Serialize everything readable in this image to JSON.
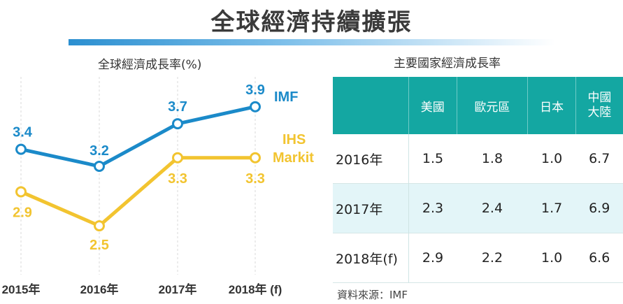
{
  "title": "全球經濟持續擴張",
  "left_chart_title": "全球經濟成長率(%)",
  "right_table_title": "主要國家經濟成長率",
  "colors": {
    "imf": "#1b8ac9",
    "ihs": "#f2c430",
    "table_header": "#14a7a2",
    "alt_row": "#e3f5f8"
  },
  "chart_data": {
    "type": "line",
    "title": "全球經濟成長率(%)",
    "categories": [
      "2015年",
      "2016年",
      "2017年",
      "2018年 (f)"
    ],
    "series": [
      {
        "name": "IMF",
        "values": [
          3.4,
          3.2,
          3.7,
          3.9
        ]
      },
      {
        "name": "IHS Markit",
        "values": [
          2.9,
          2.5,
          3.3,
          3.3
        ]
      }
    ],
    "legend_placement": "right, next to line ends",
    "grid": "vertical dashed lines"
  },
  "legend": {
    "imf": "IMF",
    "ihs_line1": "IHS",
    "ihs_line2": "Markit"
  },
  "table": {
    "headers": [
      "美國",
      "歐元區",
      "日本"
    ],
    "header_last": [
      "中國",
      "大陸"
    ],
    "rows": [
      {
        "year": "2016年",
        "values": [
          "1.5",
          "1.8",
          "1.0",
          "6.7"
        ]
      },
      {
        "year": "2017年",
        "values": [
          "2.3",
          "2.4",
          "1.7",
          "6.9"
        ]
      },
      {
        "year": "2018年(f)",
        "values": [
          "2.9",
          "2.2",
          "1.0",
          "6.6"
        ]
      }
    ]
  },
  "source": "資料來源：IMF"
}
